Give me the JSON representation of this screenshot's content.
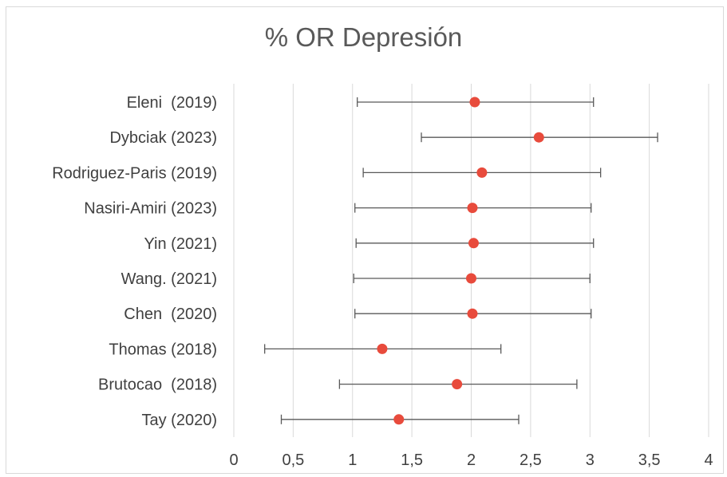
{
  "chart_data": {
    "type": "forest",
    "title": "% OR Depresión",
    "xlabel": "",
    "ylabel": "",
    "xlim": [
      0,
      4
    ],
    "x_ticks": [
      "0",
      "0,5",
      "1",
      "1,5",
      "2",
      "2,5",
      "3",
      "3,5",
      "4"
    ],
    "grid": "vertical",
    "legend": "none",
    "point_color": "#e84b3c",
    "errorbar_color": "#595959",
    "grid_color": "#d9d9d9",
    "studies": [
      {
        "label": "Eleni  (2019)",
        "or": 2.03,
        "lower": 1.04,
        "upper": 3.03
      },
      {
        "label": "Dybciak (2023)",
        "or": 2.57,
        "lower": 1.58,
        "upper": 3.57
      },
      {
        "label": "Rodriguez-Paris (2019)",
        "or": 2.09,
        "lower": 1.09,
        "upper": 3.09
      },
      {
        "label": "Nasiri-Amiri (2023)",
        "or": 2.01,
        "lower": 1.02,
        "upper": 3.01
      },
      {
        "label": "Yin (2021)",
        "or": 2.02,
        "lower": 1.03,
        "upper": 3.03
      },
      {
        "label": "Wang. (2021)",
        "or": 2.0,
        "lower": 1.01,
        "upper": 3.0
      },
      {
        "label": "Chen  (2020)",
        "or": 2.01,
        "lower": 1.02,
        "upper": 3.01
      },
      {
        "label": "Thomas (2018)",
        "or": 1.25,
        "lower": 0.26,
        "upper": 2.25
      },
      {
        "label": "Brutocao  (2018)",
        "or": 1.88,
        "lower": 0.89,
        "upper": 2.89
      },
      {
        "label": "Tay (2020)",
        "or": 1.39,
        "lower": 0.4,
        "upper": 2.4
      }
    ]
  }
}
